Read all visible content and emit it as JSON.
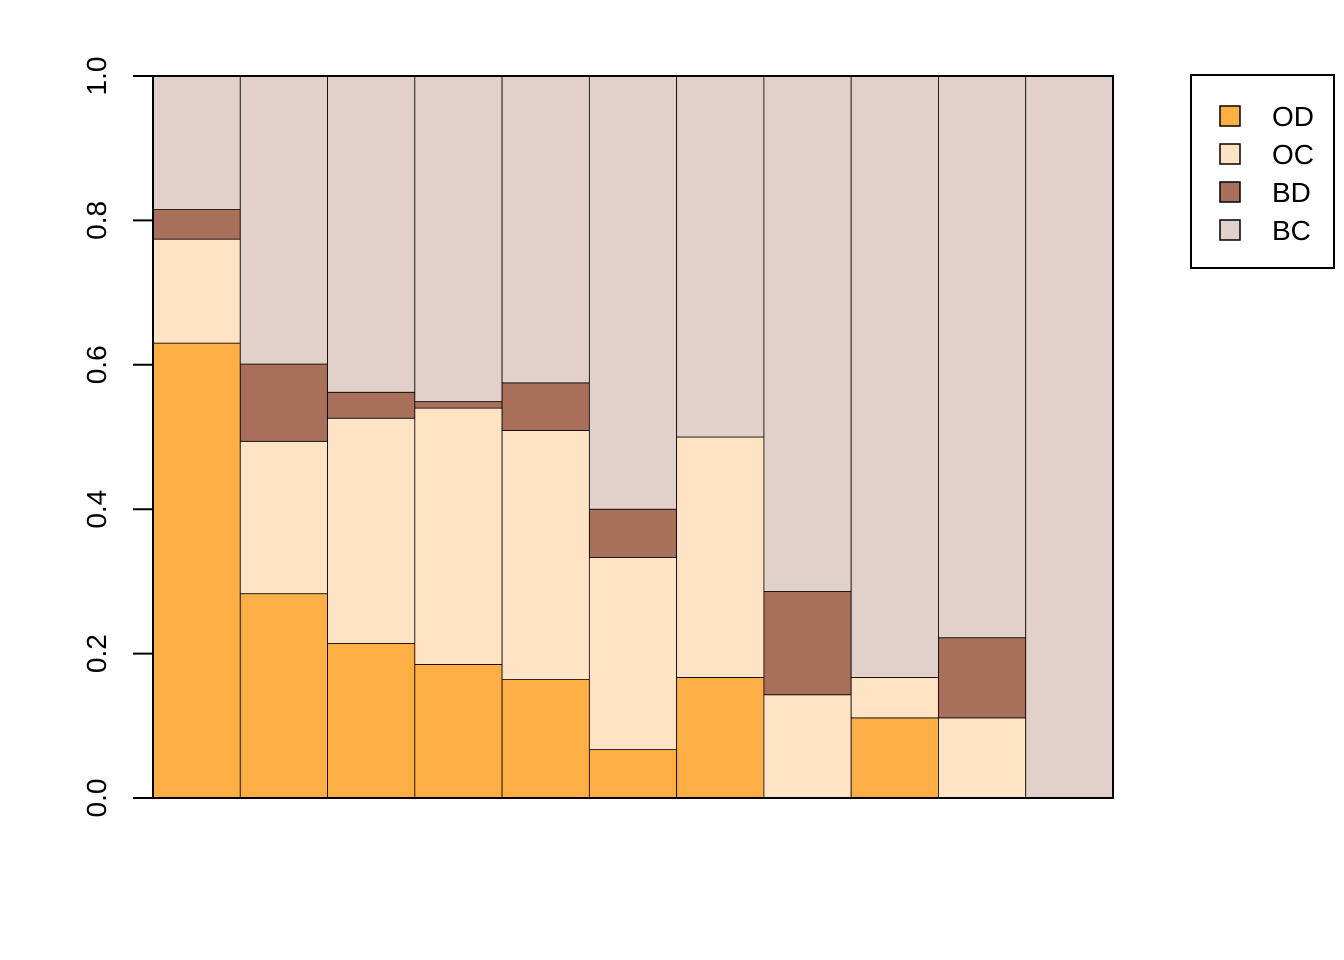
{
  "chart_data": {
    "type": "bar",
    "stacked": true,
    "normalized": true,
    "categories": [
      "",
      "",
      "",
      "",
      "",
      "",
      "",
      "",
      "",
      "",
      ""
    ],
    "series": [
      {
        "name": "OD",
        "color": "#FDAE45",
        "values": [
          0.63,
          0.283,
          0.214,
          0.185,
          0.164,
          0.067,
          0.167,
          0.0,
          0.111,
          0.0,
          0.0
        ]
      },
      {
        "name": "OC",
        "color": "#FEE4C4",
        "values": [
          0.144,
          0.211,
          0.312,
          0.355,
          0.345,
          0.266,
          0.333,
          0.143,
          0.056,
          0.111,
          0.0
        ]
      },
      {
        "name": "BD",
        "color": "#A86F5B",
        "values": [
          0.041,
          0.107,
          0.036,
          0.009,
          0.066,
          0.067,
          0.0,
          0.143,
          0.0,
          0.111,
          0.0
        ]
      },
      {
        "name": "BC",
        "color": "#E2D0CA",
        "values": [
          0.185,
          0.399,
          0.438,
          0.451,
          0.425,
          0.6,
          0.5,
          0.714,
          0.833,
          0.778,
          1.0
        ]
      }
    ],
    "yticks": [
      "0.0",
      "0.2",
      "0.4",
      "0.6",
      "0.8",
      "1.0"
    ],
    "ylim": [
      0,
      1
    ],
    "xlabel": "",
    "ylabel": "",
    "title": "",
    "grid": false,
    "legend_position": "right-top"
  }
}
